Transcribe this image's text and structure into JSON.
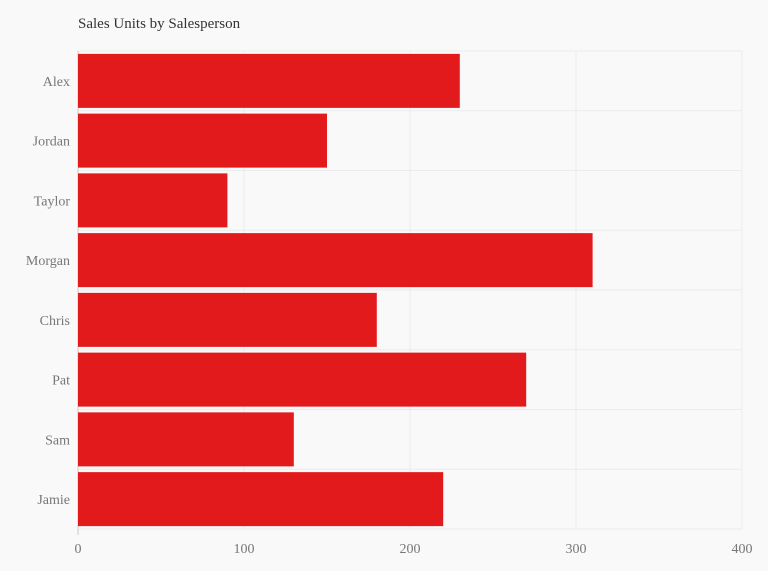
{
  "chart_data": {
    "type": "bar",
    "orientation": "horizontal",
    "title": "Sales Units by Salesperson",
    "xlabel": "",
    "ylabel": "",
    "categories": [
      "Alex",
      "Jordan",
      "Taylor",
      "Morgan",
      "Chris",
      "Pat",
      "Sam",
      "Jamie"
    ],
    "values": [
      230,
      150,
      90,
      310,
      180,
      270,
      130,
      220
    ],
    "xlim": [
      0,
      400
    ],
    "xticks": [
      0,
      100,
      200,
      300,
      400
    ],
    "grid": true,
    "bar_color": "#e31a1c"
  }
}
